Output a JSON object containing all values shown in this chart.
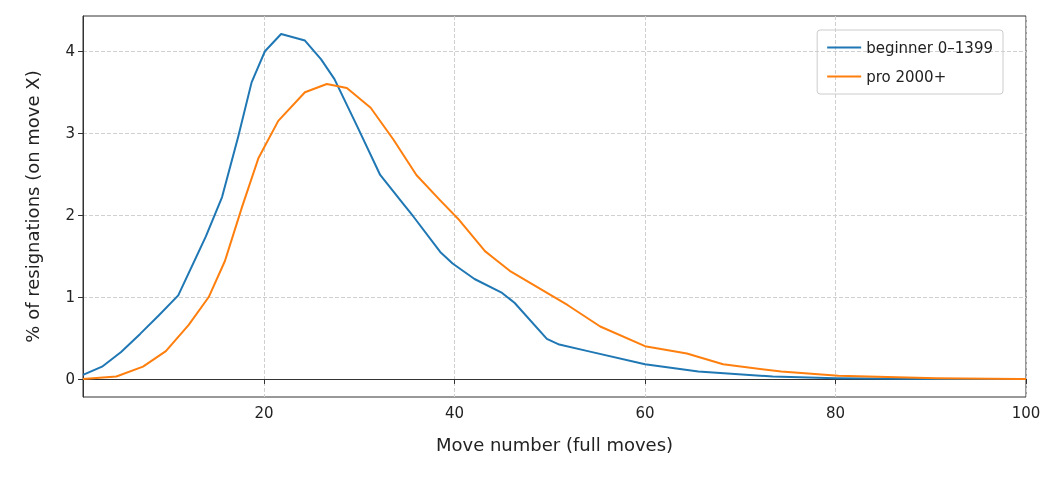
{
  "chart_data": {
    "type": "line",
    "xlabel": "Move number (full moves)",
    "ylabel": "% of resignations (on move X)",
    "xlim": [
      1,
      100
    ],
    "ylim": [
      -0.22,
      4.43
    ],
    "xticks": [
      20,
      40,
      60,
      80,
      100
    ],
    "yticks": [
      0,
      1,
      2,
      3,
      4
    ],
    "grid": true,
    "legend": "top right",
    "series": [
      {
        "name": "beginner 0–1399",
        "color": "#1f77b4",
        "x": [
          1,
          3,
          5,
          7,
          9,
          11,
          13.9,
          15.6,
          17.3,
          18.7,
          20.1,
          21.8,
          24.3,
          26,
          27.4,
          29.8,
          32.2,
          34.6,
          35.7,
          38.5,
          39.8,
          42.1,
          45,
          46.3,
          49.7,
          51,
          54,
          60,
          65.6,
          73.4,
          80,
          90,
          100
        ],
        "values": [
          0.05,
          0.15,
          0.33,
          0.55,
          0.78,
          1.02,
          1.74,
          2.22,
          2.96,
          3.62,
          4.0,
          4.21,
          4.13,
          3.9,
          3.66,
          3.08,
          2.49,
          2.14,
          1.98,
          1.55,
          1.41,
          1.22,
          1.05,
          0.93,
          0.49,
          0.42,
          0.34,
          0.18,
          0.09,
          0.03,
          0.01,
          0.0,
          0.0
        ]
      },
      {
        "name": "pro 2000+",
        "color": "#ff7f0e",
        "x": [
          1,
          4.5,
          7.3,
          9.7,
          12.1,
          14.2,
          15.9,
          17.7,
          19.4,
          21.5,
          24.3,
          26.6,
          28.7,
          31.2,
          33.6,
          36,
          38.5,
          40.5,
          43.2,
          45.8,
          51.9,
          55.3,
          60,
          64.4,
          68.2,
          74.3,
          80.3,
          90.6,
          100
        ],
        "values": [
          0.0,
          0.03,
          0.15,
          0.34,
          0.66,
          1.0,
          1.44,
          2.1,
          2.69,
          3.15,
          3.5,
          3.6,
          3.55,
          3.31,
          2.92,
          2.49,
          2.18,
          1.94,
          1.56,
          1.32,
          0.9,
          0.64,
          0.4,
          0.31,
          0.18,
          0.09,
          0.04,
          0.01,
          0.0
        ]
      }
    ]
  }
}
